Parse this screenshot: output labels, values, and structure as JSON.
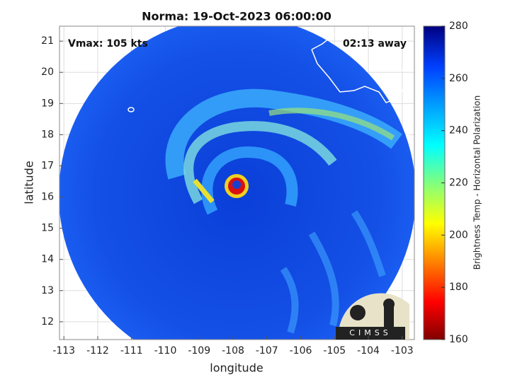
{
  "chart_data": {
    "type": "map",
    "title": "Norma: 19-Oct-2023 06:00:00",
    "xlabel": "longitude",
    "ylabel": "latitude",
    "xlim": [
      -113.13,
      -102.64
    ],
    "ylim": [
      11.43,
      21.48
    ],
    "xticks": [
      -113,
      -112,
      -111,
      -110,
      -109,
      -108,
      -107,
      -106,
      -105,
      -104,
      -103
    ],
    "yticks": [
      12,
      13,
      14,
      15,
      16,
      17,
      18,
      19,
      20,
      21
    ],
    "grid": true,
    "annotations": {
      "vmax": "Vmax: 105 kts",
      "time_offset": "02:13 away"
    },
    "colorbar": {
      "label": "Brightness Temp - Horizontal Polarization",
      "lim": [
        160,
        280
      ],
      "ticks": [
        160,
        180,
        200,
        220,
        240,
        260,
        280
      ]
    },
    "logo": "CIMSS"
  }
}
